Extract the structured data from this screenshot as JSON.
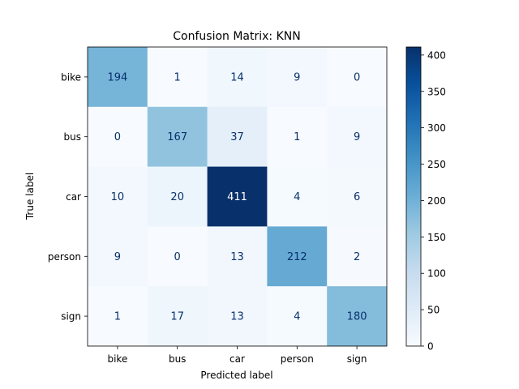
{
  "chart_data": {
    "type": "heatmap",
    "title": "Confusion Matrix: KNN",
    "xlabel": "Predicted label",
    "ylabel": "True label",
    "x_categories": [
      "bike",
      "bus",
      "car",
      "person",
      "sign"
    ],
    "y_categories": [
      "bike",
      "bus",
      "car",
      "person",
      "sign"
    ],
    "values": [
      [
        194,
        1,
        14,
        9,
        0
      ],
      [
        0,
        167,
        37,
        1,
        9
      ],
      [
        10,
        20,
        411,
        4,
        6
      ],
      [
        9,
        0,
        13,
        212,
        2
      ],
      [
        1,
        17,
        13,
        4,
        180
      ]
    ],
    "colormap": "Blues",
    "colorbar": {
      "range": [
        0,
        411
      ],
      "ticks": [
        0,
        50,
        100,
        150,
        200,
        250,
        300,
        350,
        400
      ]
    }
  }
}
